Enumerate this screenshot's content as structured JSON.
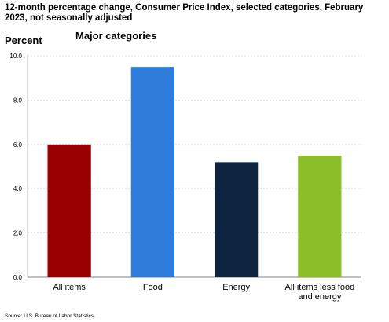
{
  "title": "12-month percentage change, Consumer Price Index, selected categories, February 2023, not seasonally adjusted",
  "source": "Source: U.S. Bureau of Labor Statistics.",
  "chart_data": {
    "type": "bar",
    "title": "Major categories",
    "ylabel": "Percent",
    "xlabel": "",
    "ylim": [
      0,
      10
    ],
    "yticks": [
      "0.0",
      "2.0",
      "4.0",
      "6.0",
      "8.0",
      "10.0"
    ],
    "grid": true,
    "categories": [
      [
        "All items"
      ],
      [
        "Food"
      ],
      [
        "Energy"
      ],
      [
        "All items less food",
        "and energy"
      ]
    ],
    "values": [
      6.0,
      9.5,
      5.2,
      5.5
    ],
    "colors": [
      "#990000",
      "#2E7CD9",
      "#0E2440",
      "#8CBE2A"
    ]
  }
}
